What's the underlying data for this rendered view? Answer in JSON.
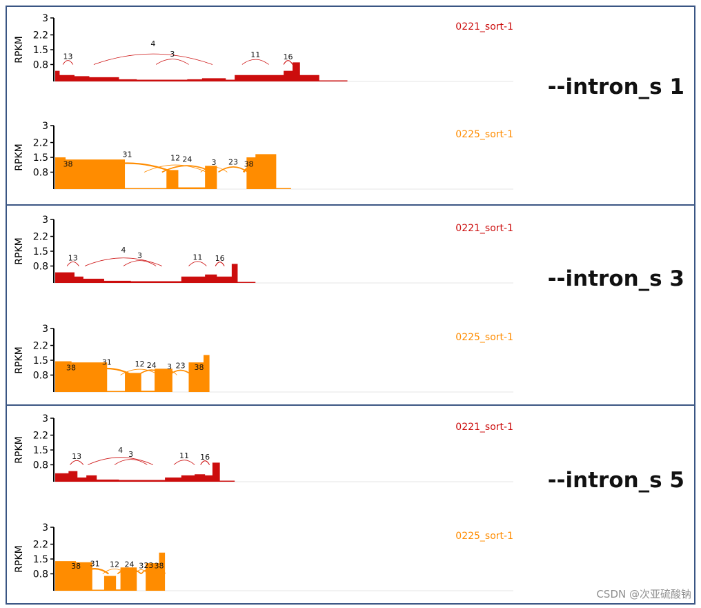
{
  "colors": {
    "red": "#cc0d0d",
    "orange": "#ff8c00",
    "frame": "#3a5583"
  },
  "watermark": "CSDN @次亚硫酸钠",
  "panels": [
    {
      "label": "--intron_s 1",
      "tracks": [
        {
          "sample": "0221_sort-1",
          "color": "#cc0d0d",
          "ylabel": "RPKM",
          "yticks": [
            "3",
            "2.2",
            "1.5",
            "0.8"
          ],
          "ylim": [
            0,
            3
          ],
          "coverage": [
            [
              0.0,
              0.5
            ],
            [
              1.5,
              0.3
            ],
            [
              6.5,
              0.25
            ],
            [
              11.5,
              0.2
            ],
            [
              21.5,
              0.1
            ],
            [
              27.5,
              0.08
            ],
            [
              44.5,
              0.1
            ],
            [
              49.5,
              0.15
            ],
            [
              57.5,
              0.08
            ],
            [
              60.5,
              0.3
            ],
            [
              72.5,
              0.3
            ],
            [
              77.0,
              0.5
            ],
            [
              80.0,
              0.9
            ],
            [
              82.5,
              0.3
            ],
            [
              85.5,
              0.3
            ],
            [
              89.0,
              0.05
            ],
            [
              90.5,
              0.05
            ],
            [
              92.5,
              0.05
            ],
            [
              95.5,
              0.05
            ]
          ],
          "junctions": [
            {
              "label": "13",
              "from": 2.6,
              "to": 6.0,
              "count": 13
            },
            {
              "label": "4",
              "from": 13.0,
              "to": 53.0,
              "count": 4
            },
            {
              "label": "3",
              "from": 34.0,
              "to": 45.0,
              "count": 3
            },
            {
              "label": "11",
              "from": 63.0,
              "to": 72.0,
              "count": 11
            },
            {
              "label": "16",
              "from": 77.0,
              "to": 80.0,
              "count": 16
            }
          ]
        },
        {
          "sample": "0225_sort-1",
          "color": "#ff8c00",
          "ylabel": "RPKM",
          "yticks": [
            "3",
            "2.2",
            "1.5",
            "0.8"
          ],
          "ylim": [
            0,
            3
          ],
          "coverage": [
            [
              0.0,
              1.5
            ],
            [
              3.5,
              1.4
            ],
            [
              9.0,
              1.4
            ],
            [
              23.5,
              0.05
            ],
            [
              37.5,
              0.9
            ],
            [
              41.5,
              0.08
            ],
            [
              50.5,
              1.1
            ],
            [
              54.5,
              0.0
            ],
            [
              64.5,
              1.5
            ],
            [
              67.5,
              1.65
            ],
            [
              74.5,
              0.05
            ],
            [
              76.5,
              0.05
            ]
          ],
          "junctions": [
            {
              "label": "38",
              "from": 2.6,
              "to": 6.0,
              "count": 38
            },
            {
              "label": "31",
              "from": 8.8,
              "to": 39.8,
              "count": 31
            },
            {
              "label": "12",
              "from": 30.0,
              "to": 51.0,
              "count": 12
            },
            {
              "label": "24",
              "from": 36.0,
              "to": 53.0,
              "count": 24
            },
            {
              "label": "3",
              "from": 49.0,
              "to": 58.0,
              "count": 3
            },
            {
              "label": "23",
              "from": 55.0,
              "to": 65.0,
              "count": 23
            },
            {
              "label": "38",
              "from": 63.5,
              "to": 67.0,
              "count": 38
            }
          ]
        }
      ]
    },
    {
      "label": "--intron_s 3",
      "tracks": [
        {
          "sample": "0221_sort-1",
          "color": "#cc0d0d",
          "ylabel": "RPKM",
          "yticks": [
            "3",
            "2.2",
            "1.5",
            "0.8"
          ],
          "ylim": [
            0,
            3
          ],
          "coverage": [
            [
              0.0,
              0.5
            ],
            [
              6.5,
              0.3
            ],
            [
              9.5,
              0.2
            ],
            [
              16.5,
              0.1
            ],
            [
              25.5,
              0.08
            ],
            [
              36.5,
              0.08
            ],
            [
              42.5,
              0.3
            ],
            [
              50.5,
              0.4
            ],
            [
              54.5,
              0.3
            ],
            [
              57.5,
              0.3
            ],
            [
              59.5,
              0.9
            ],
            [
              61.5,
              0.05
            ],
            [
              64.5,
              0.05
            ]
          ],
          "junctions": [
            {
              "label": "13",
              "from": 4.0,
              "to": 8.0,
              "count": 13
            },
            {
              "label": "4",
              "from": 10.0,
              "to": 36.0,
              "count": 4
            },
            {
              "label": "3",
              "from": 23.0,
              "to": 34.0,
              "count": 3
            },
            {
              "label": "11",
              "from": 45.0,
              "to": 51.0,
              "count": 11
            },
            {
              "label": "16",
              "from": 54.0,
              "to": 57.0,
              "count": 16
            }
          ]
        },
        {
          "sample": "0225_sort-1",
          "color": "#ff8c00",
          "ylabel": "RPKM",
          "yticks": [
            "3",
            "2.2",
            "1.5",
            "0.8"
          ],
          "ylim": [
            0,
            3
          ],
          "coverage": [
            [
              0.0,
              1.45
            ],
            [
              5.5,
              1.4
            ],
            [
              17.5,
              0.05
            ],
            [
              23.5,
              0.9
            ],
            [
              29.0,
              0.06
            ],
            [
              33.5,
              1.1
            ],
            [
              39.5,
              0.0
            ],
            [
              45.0,
              1.4
            ],
            [
              50.0,
              1.75
            ],
            [
              52.0,
              0.0
            ]
          ],
          "junctions": [
            {
              "label": "38",
              "from": 4.2,
              "to": 6.5,
              "count": 38
            },
            {
              "label": "31",
              "from": 8.8,
              "to": 26.0,
              "count": 31
            },
            {
              "label": "12",
              "from": 22.0,
              "to": 35.0,
              "count": 12
            },
            {
              "label": "24",
              "from": 28.0,
              "to": 37.0,
              "count": 24
            },
            {
              "label": "3",
              "from": 36.0,
              "to": 41.0,
              "count": 3
            },
            {
              "label": "23",
              "from": 38.5,
              "to": 46.0,
              "count": 23
            },
            {
              "label": "38",
              "from": 47.0,
              "to": 50.0,
              "count": 38
            }
          ]
        }
      ]
    },
    {
      "label": "--intron_s 5",
      "tracks": [
        {
          "sample": "0221_sort-1",
          "color": "#cc0d0d",
          "ylabel": "RPKM",
          "yticks": [
            "3",
            "2.2",
            "1.5",
            "0.8"
          ],
          "ylim": [
            0,
            3
          ],
          "coverage": [
            [
              0.0,
              0.4
            ],
            [
              4.5,
              0.5
            ],
            [
              7.5,
              0.2
            ],
            [
              10.5,
              0.3
            ],
            [
              14.0,
              0.1
            ],
            [
              21.5,
              0.08
            ],
            [
              32.5,
              0.08
            ],
            [
              37.0,
              0.2
            ],
            [
              42.5,
              0.3
            ],
            [
              47.0,
              0.35
            ],
            [
              50.5,
              0.3
            ],
            [
              53.0,
              0.9
            ],
            [
              55.5,
              0.05
            ],
            [
              57.5,
              0.05
            ]
          ],
          "junctions": [
            {
              "label": "13",
              "from": 5.0,
              "to": 9.5,
              "count": 13
            },
            {
              "label": "4",
              "from": 11.0,
              "to": 33.0,
              "count": 4
            },
            {
              "label": "3",
              "from": 20.0,
              "to": 31.0,
              "count": 3
            },
            {
              "label": "11",
              "from": 40.0,
              "to": 47.0,
              "count": 11
            },
            {
              "label": "16",
              "from": 49.0,
              "to": 52.0,
              "count": 16
            }
          ]
        },
        {
          "sample": "0225_sort-1",
          "color": "#ff8c00",
          "ylabel": "RPKM",
          "yticks": [
            "3",
            "2.2",
            "1.5",
            "0.8"
          ],
          "ylim": [
            0,
            3
          ],
          "coverage": [
            [
              0.0,
              1.4
            ],
            [
              7.0,
              1.35
            ],
            [
              12.5,
              0.05
            ],
            [
              16.5,
              0.7
            ],
            [
              20.5,
              0.06
            ],
            [
              22.0,
              1.1
            ],
            [
              27.5,
              0.0
            ],
            [
              30.5,
              1.3
            ],
            [
              35.0,
              1.8
            ],
            [
              37.0,
              0.0
            ]
          ],
          "junctions": [
            {
              "label": "38",
              "from": 5.5,
              "to": 8.5,
              "count": 38
            },
            {
              "label": "31",
              "from": 8.8,
              "to": 18.0,
              "count": 31
            },
            {
              "label": "12",
              "from": 16.0,
              "to": 24.0,
              "count": 12
            },
            {
              "label": "24",
              "from": 21.0,
              "to": 29.0,
              "count": 24
            },
            {
              "label": "3",
              "from": 27.0,
              "to": 31.0,
              "count": 3
            },
            {
              "label": "23",
              "from": 29.0,
              "to": 34.0,
              "count": 23
            },
            {
              "label": "38",
              "from": 33.0,
              "to": 37.0,
              "count": 38
            }
          ]
        }
      ]
    }
  ],
  "chart_data": [
    {
      "type": "area",
      "panel": "--intron_s 1",
      "sample": "0221_sort-1",
      "ylabel": "RPKM",
      "yticks": [
        "3",
        "2.2",
        "1.5",
        "0.8"
      ],
      "junction_labels": [
        "13",
        "4",
        "3",
        "11",
        "16"
      ]
    },
    {
      "type": "area",
      "panel": "--intron_s 1",
      "sample": "0225_sort-1",
      "ylabel": "RPKM",
      "yticks": [
        "3",
        "2.2",
        "1.5",
        "0.8"
      ],
      "junction_labels": [
        "38",
        "31",
        "12",
        "24",
        "3",
        "23",
        "38"
      ]
    },
    {
      "type": "area",
      "panel": "--intron_s 3",
      "sample": "0221_sort-1",
      "ylabel": "RPKM",
      "yticks": [
        "3",
        "2.2",
        "1.5",
        "0.8"
      ],
      "junction_labels": [
        "13",
        "4",
        "3",
        "11",
        "16"
      ]
    },
    {
      "type": "area",
      "panel": "--intron_s 3",
      "sample": "0225_sort-1",
      "ylabel": "RPKM",
      "yticks": [
        "3",
        "2.2",
        "1.5",
        "0.8"
      ],
      "junction_labels": [
        "38",
        "31",
        "12",
        "24",
        "3",
        "23",
        "38"
      ]
    },
    {
      "type": "area",
      "panel": "--intron_s 5",
      "sample": "0221_sort-1",
      "ylabel": "RPKM",
      "yticks": [
        "3",
        "2.2",
        "1.5",
        "0.8"
      ],
      "junction_labels": [
        "13",
        "4",
        "3",
        "11",
        "16"
      ]
    },
    {
      "type": "area",
      "panel": "--intron_s 5",
      "sample": "0225_sort-1",
      "ylabel": "RPKM",
      "yticks": [
        "3",
        "2.2",
        "1.5",
        "0.8"
      ],
      "junction_labels": [
        "38",
        "31",
        "12",
        "24",
        "3",
        "23",
        "38"
      ]
    }
  ]
}
